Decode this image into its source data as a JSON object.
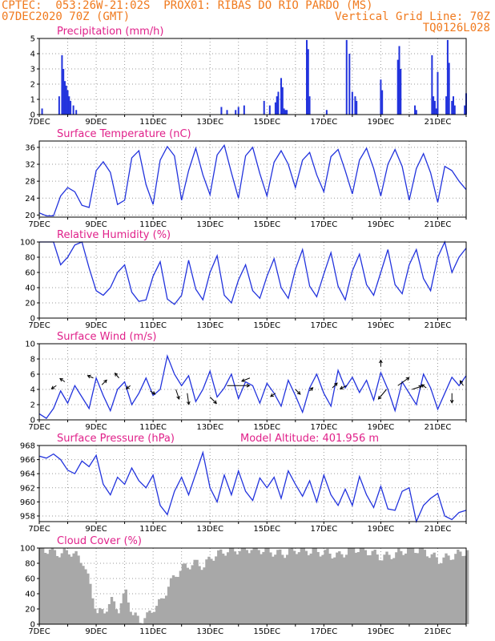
{
  "header": {
    "line1_left": "CPTEC:  053:26W-21:02S  PROX01: RIBAS DO RIO PARDO (MS)",
    "line2_left": "07DEC2020 70Z (GMT)",
    "line2_right": "Vertical Grid Line: 70Z",
    "line3_right": "TQ0126L028"
  },
  "colors": {
    "header": "#f07a1e",
    "title": "#e0218a",
    "line": "#2233dd",
    "cloud": "#a8a8a8",
    "arrow": "#000000"
  },
  "x_tick_labels": [
    "7DEC",
    "9DEC",
    "11DEC",
    "13DEC",
    "15DEC",
    "17DEC",
    "19DEC",
    "21DEC"
  ],
  "chart_data": [
    {
      "type": "bar",
      "title": "Precipitation (mm/h)",
      "ylim": [
        0,
        5
      ],
      "yticks": [
        "0",
        "1",
        "2",
        "3",
        "4",
        "5"
      ],
      "x": [
        0.1,
        0.7,
        0.8,
        0.85,
        0.9,
        0.95,
        1.0,
        1.05,
        1.1,
        1.2,
        1.3,
        6.4,
        6.6,
        6.9,
        7.0,
        7.2,
        7.9,
        8.1,
        8.3,
        8.35,
        8.4,
        8.5,
        8.55,
        8.6,
        8.65,
        8.7,
        9.4,
        9.45,
        9.5,
        10.1,
        10.8,
        10.9,
        11.0,
        11.1,
        11.15,
        12.0,
        12.05,
        12.6,
        12.65,
        12.7,
        13.2,
        13.25,
        13.8,
        13.85,
        13.9,
        13.95,
        14.5,
        14.55,
        14.6,
        14.95,
        14.0,
        15.0,
        14.3,
        14.35,
        14.4
      ],
      "values": [
        0.4,
        1.2,
        3.9,
        3.0,
        2.2,
        1.9,
        1.6,
        1.2,
        0.9,
        0.6,
        0.3,
        0.5,
        0.3,
        0.3,
        0.5,
        0.6,
        0.9,
        0.6,
        0.8,
        1.2,
        1.5,
        2.4,
        1.8,
        0.4,
        0.3,
        0.3,
        4.9,
        4.3,
        1.2,
        0.3,
        4.9,
        4.0,
        1.5,
        1.2,
        0.9,
        2.3,
        1.6,
        3.6,
        4.5,
        3.0,
        0.6,
        0.3,
        3.9,
        1.2,
        0.9,
        0.4,
        0.9,
        1.2,
        0.6,
        0.6,
        2.8,
        1.4,
        1.2,
        4.9,
        3.4
      ]
    },
    {
      "type": "line",
      "title": "Surface Temperature (nC)",
      "ylim": [
        19.5,
        37.5
      ],
      "yticks": [
        "20",
        "24",
        "28",
        "32",
        "36"
      ],
      "x": [
        0,
        0.25,
        0.5,
        0.75,
        1.0,
        1.25,
        1.5,
        1.75,
        2.0,
        2.25,
        2.5,
        2.75,
        3.0,
        3.25,
        3.5,
        3.75,
        4.0,
        4.25,
        4.5,
        4.75,
        5.0,
        5.25,
        5.5,
        5.75,
        6.0,
        6.25,
        6.5,
        6.75,
        7.0,
        7.25,
        7.5,
        7.75,
        8.0,
        8.25,
        8.5,
        8.75,
        9.0,
        9.25,
        9.5,
        9.75,
        10.0,
        10.25,
        10.5,
        10.75,
        11.0,
        11.25,
        11.5,
        11.75,
        12.0,
        12.25,
        12.5,
        12.75,
        13.0,
        13.25,
        13.5,
        13.75,
        14.0,
        14.25,
        14.5,
        14.75,
        15.0
      ],
      "values": [
        20.5,
        19.8,
        19.8,
        24.5,
        26.5,
        25.5,
        22.3,
        21.8,
        30.5,
        32.6,
        30.1,
        22.5,
        23.5,
        33.5,
        35.2,
        27.2,
        22.5,
        33.0,
        36.2,
        34.0,
        23.5,
        30.5,
        35.8,
        29.5,
        24.8,
        34.2,
        36.5,
        30.0,
        24.0,
        34.0,
        36.0,
        29.8,
        24.5,
        32.5,
        35.2,
        32.0,
        26.5,
        33.0,
        34.8,
        29.5,
        25.5,
        33.8,
        35.5,
        30.5,
        25.0,
        33.0,
        35.8,
        31.0,
        24.5,
        32.0,
        35.5,
        31.5,
        23.5,
        31.0,
        34.5,
        30.0,
        23.0,
        31.5,
        30.5,
        28.0,
        26.0
      ]
    },
    {
      "type": "line",
      "title": "Relative Humidity (%)",
      "ylim": [
        0,
        100
      ],
      "yticks": [
        "0",
        "20",
        "40",
        "60",
        "80",
        "100"
      ],
      "x": [
        0,
        0.25,
        0.5,
        0.75,
        1.0,
        1.25,
        1.5,
        1.75,
        2.0,
        2.25,
        2.5,
        2.75,
        3.0,
        3.25,
        3.5,
        3.75,
        4.0,
        4.25,
        4.5,
        4.75,
        5.0,
        5.25,
        5.5,
        5.75,
        6.0,
        6.25,
        6.5,
        6.75,
        7.0,
        7.25,
        7.5,
        7.75,
        8.0,
        8.25,
        8.5,
        8.75,
        9.0,
        9.25,
        9.5,
        9.75,
        10.0,
        10.25,
        10.5,
        10.75,
        11.0,
        11.25,
        11.5,
        11.75,
        12.0,
        12.25,
        12.5,
        12.75,
        13.0,
        13.25,
        13.5,
        13.75,
        14.0,
        14.25,
        14.5,
        14.75,
        15.0
      ],
      "values": [
        100,
        100,
        100,
        70,
        80,
        96,
        100,
        66,
        36,
        30,
        40,
        60,
        70,
        34,
        22,
        24,
        55,
        74,
        25,
        18,
        30,
        76,
        38,
        24,
        60,
        82,
        30,
        20,
        50,
        70,
        36,
        26,
        55,
        78,
        40,
        26,
        64,
        90,
        42,
        28,
        58,
        86,
        42,
        24,
        62,
        84,
        44,
        30,
        60,
        90,
        44,
        32,
        70,
        90,
        52,
        36,
        80,
        100,
        60,
        80,
        92
      ]
    },
    {
      "type": "line",
      "title": "Surface Wind (m/s)",
      "ylim": [
        0,
        10
      ],
      "yticks": [
        "0",
        "2",
        "4",
        "6",
        "8",
        "10"
      ],
      "x": [
        0,
        0.25,
        0.5,
        0.75,
        1.0,
        1.25,
        1.5,
        1.75,
        2.0,
        2.25,
        2.5,
        2.75,
        3.0,
        3.25,
        3.5,
        3.75,
        4.0,
        4.25,
        4.5,
        4.75,
        5.0,
        5.25,
        5.5,
        5.75,
        6.0,
        6.25,
        6.5,
        6.75,
        7.0,
        7.25,
        7.5,
        7.75,
        8.0,
        8.25,
        8.5,
        8.75,
        9.0,
        9.25,
        9.5,
        9.75,
        10.0,
        10.25,
        10.5,
        10.75,
        11.0,
        11.25,
        11.5,
        11.75,
        12.0,
        12.25,
        12.5,
        12.75,
        13.0,
        13.25,
        13.5,
        13.75,
        14.0,
        14.25,
        14.5,
        14.75,
        15.0
      ],
      "values": [
        0.8,
        0.2,
        1.5,
        3.8,
        2.2,
        4.5,
        3.0,
        1.5,
        5.5,
        3.2,
        1.2,
        4.0,
        5.0,
        2.0,
        3.5,
        5.5,
        3.2,
        4.0,
        8.4,
        6.0,
        4.5,
        5.8,
        2.4,
        4.0,
        6.4,
        3.0,
        4.2,
        6.0,
        2.8,
        5.0,
        4.5,
        2.2,
        4.8,
        3.5,
        1.8,
        5.2,
        3.2,
        1.0,
        4.2,
        6.0,
        3.5,
        1.8,
        6.5,
        4.2,
        5.6,
        3.6,
        5.2,
        2.6,
        6.2,
        4.0,
        1.2,
        5.0,
        3.5,
        2.0,
        6.0,
        4.2,
        1.4,
        3.5,
        5.6,
        4.5,
        5.8
      ],
      "arrows": [
        {
          "x": 0.6,
          "y": 4.5,
          "u": -6,
          "v": 4
        },
        {
          "x": 0.9,
          "y": 5.0,
          "u": -6,
          "v": -4
        },
        {
          "x": 1.9,
          "y": 5.5,
          "u": -7,
          "v": -3
        },
        {
          "x": 2.2,
          "y": 4.6,
          "u": 6,
          "v": -6
        },
        {
          "x": 2.8,
          "y": 5.5,
          "u": -5,
          "v": -6
        },
        {
          "x": 3.2,
          "y": 4.5,
          "u": -5,
          "v": 4
        },
        {
          "x": 3.9,
          "y": 3.8,
          "u": 6,
          "v": 4
        },
        {
          "x": 4.8,
          "y": 4.0,
          "u": 4,
          "v": 12
        },
        {
          "x": 5.2,
          "y": 3.5,
          "u": 2,
          "v": 14
        },
        {
          "x": 6.0,
          "y": 3.0,
          "u": 8,
          "v": 8
        },
        {
          "x": 6.6,
          "y": 4.5,
          "u": 28,
          "v": 0
        },
        {
          "x": 7.4,
          "y": 5.5,
          "u": -10,
          "v": 4
        },
        {
          "x": 8.3,
          "y": 3.5,
          "u": -6,
          "v": 4
        },
        {
          "x": 9.0,
          "y": 4.0,
          "u": 6,
          "v": 6
        },
        {
          "x": 9.5,
          "y": 3.8,
          "u": 4,
          "v": -4
        },
        {
          "x": 10.3,
          "y": 4.2,
          "u": 6,
          "v": -6
        },
        {
          "x": 10.8,
          "y": 4.5,
          "u": -8,
          "v": 4
        },
        {
          "x": 12.0,
          "y": 7.0,
          "u": 0,
          "v": -8
        },
        {
          "x": 12.2,
          "y": 4.0,
          "u": -10,
          "v": 12
        },
        {
          "x": 12.6,
          "y": 4.5,
          "u": 14,
          "v": -10
        },
        {
          "x": 13.1,
          "y": 4.0,
          "u": 12,
          "v": -4
        },
        {
          "x": 13.6,
          "y": 4.2,
          "u": -6,
          "v": -4
        },
        {
          "x": 14.5,
          "y": 3.5,
          "u": 0,
          "v": 12
        },
        {
          "x": 14.9,
          "y": 4.5,
          "u": -4,
          "v": -6
        }
      ]
    },
    {
      "type": "line",
      "title": "Surface Pressure (hPa)",
      "subtitle": "Model Altitude: 401.956 m",
      "ylim": [
        957.2,
        968
      ],
      "yticks": [
        "958",
        "960",
        "962",
        "964",
        "966",
        "968"
      ],
      "x": [
        0,
        0.25,
        0.5,
        0.75,
        1.0,
        1.25,
        1.5,
        1.75,
        2.0,
        2.25,
        2.5,
        2.75,
        3.0,
        3.25,
        3.5,
        3.75,
        4.0,
        4.25,
        4.5,
        4.75,
        5.0,
        5.25,
        5.5,
        5.75,
        6.0,
        6.25,
        6.5,
        6.75,
        7.0,
        7.25,
        7.5,
        7.75,
        8.0,
        8.25,
        8.5,
        8.75,
        9.0,
        9.25,
        9.5,
        9.75,
        10.0,
        10.25,
        10.5,
        10.75,
        11.0,
        11.25,
        11.5,
        11.75,
        12.0,
        12.25,
        12.5,
        12.75,
        13.0,
        13.25,
        13.5,
        13.75,
        14.0,
        14.25,
        14.5,
        14.75,
        15.0
      ],
      "values": [
        966.5,
        966.2,
        966.8,
        966.0,
        964.5,
        964.0,
        965.8,
        965.0,
        966.6,
        962.5,
        961.0,
        963.5,
        962.5,
        964.8,
        963.0,
        962.0,
        963.8,
        959.5,
        958.2,
        961.5,
        963.5,
        961.0,
        964.0,
        967.0,
        962.0,
        960.0,
        963.8,
        961.0,
        964.4,
        961.5,
        960.2,
        963.4,
        962.0,
        963.5,
        960.5,
        964.4,
        962.5,
        960.8,
        963.0,
        960.0,
        963.8,
        961.0,
        959.5,
        961.8,
        959.5,
        963.6,
        961.0,
        959.2,
        962.2,
        959.0,
        958.8,
        961.5,
        962.0,
        957.0,
        959.5,
        960.5,
        961.2,
        958.0,
        957.5,
        958.5,
        958.8
      ]
    },
    {
      "type": "area",
      "title": "Cloud Cover (%)",
      "ylim": [
        0,
        100
      ],
      "yticks": [
        "0",
        "20",
        "40",
        "60",
        "80",
        "100"
      ],
      "x": [
        0,
        0.5,
        0.75,
        1.0,
        1.25,
        1.5,
        1.75,
        2.0,
        2.25,
        2.5,
        2.75,
        3.0,
        3.25,
        3.5,
        3.75,
        4.0,
        4.25,
        4.5,
        4.75,
        5.0,
        5.25,
        5.5,
        5.75,
        6.0,
        6.5,
        7.0,
        7.5,
        8.0,
        8.5,
        9.0,
        9.5,
        10.0,
        10.5,
        11.0,
        11.5,
        12.0,
        12.5,
        13.0,
        13.5,
        14.0,
        14.5,
        15.0
      ],
      "values": [
        100,
        95,
        92,
        96,
        90,
        82,
        50,
        14,
        18,
        30,
        20,
        42,
        12,
        5,
        10,
        22,
        30,
        50,
        65,
        74,
        78,
        80,
        76,
        88,
        96,
        98,
        100,
        96,
        92,
        98,
        96,
        94,
        90,
        100,
        96,
        88,
        92,
        100,
        96,
        84,
        90,
        96
      ]
    }
  ]
}
